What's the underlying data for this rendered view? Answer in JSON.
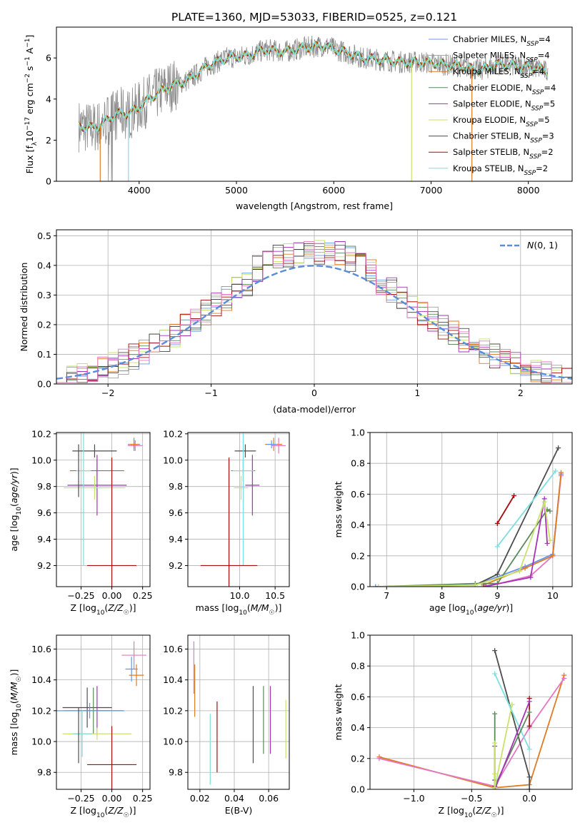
{
  "title": "PLATE=1360, MJD=53033, FIBERID=0525, z=0.121",
  "colors": {
    "chabrier_miles": "#6495ed",
    "salpeter_miles": "#9e9e9e",
    "kroupa_miles": "#e07b24",
    "chabrier_elodie": "#5c8a5c",
    "salpeter_elodie": "#a632b8",
    "kroupa_elodie": "#c8e36b",
    "chabrier_stelib": "#4d4d4d",
    "salpeter_stelib": "#a30d0d",
    "kroupa_stelib": "#7fdede",
    "pink": "#e377c2",
    "gaussian": "#5b8bd9"
  },
  "chart_data": [
    {
      "id": "spectrum",
      "type": "line",
      "xlabel": "wavelength [Angstrom, rest frame]",
      "ylabel_parts": [
        "Flux [f",
        "λ",
        "10",
        "−17",
        " erg cm",
        "−2",
        " s",
        "−1",
        " A",
        "−1",
        "]"
      ],
      "xlim": [
        3150,
        8450
      ],
      "ylim": [
        0,
        7.5
      ],
      "xticks": [
        4000,
        5000,
        6000,
        7000,
        8000
      ],
      "yticks": [
        0,
        2,
        4,
        6
      ],
      "legend": [
        {
          "pre": "Chabrier MILES, N",
          "sub": "SSP",
          "post": "=4",
          "color_key": "chabrier_miles"
        },
        {
          "pre": "Salpeter MILES, N",
          "sub": "SSP",
          "post": "=4",
          "color_key": "salpeter_miles"
        },
        {
          "pre": "Kroupa MILES, N",
          "sub": "SSP",
          "post": "=4",
          "color_key": "kroupa_miles"
        },
        {
          "pre": "Chabrier ELODIE, N",
          "sub": "SSP",
          "post": "=4",
          "color_key": "chabrier_elodie"
        },
        {
          "pre": "Salpeter ELODIE, N",
          "sub": "SSP",
          "post": "=5",
          "color_key": "salpeter_elodie"
        },
        {
          "pre": "Kroupa ELODIE, N",
          "sub": "SSP",
          "post": "=5",
          "color_key": "kroupa_elodie"
        },
        {
          "pre": "Chabrier STELIB, N",
          "sub": "SSP",
          "post": "=3",
          "color_key": "chabrier_stelib"
        },
        {
          "pre": "Salpeter STELIB, N",
          "sub": "SSP",
          "post": "=2",
          "color_key": "salpeter_stelib"
        },
        {
          "pre": "Kroupa STELIB, N",
          "sub": "SSP",
          "post": "=2",
          "color_key": "kroupa_stelib"
        }
      ],
      "continuum": [
        [
          3380,
          2.7
        ],
        [
          3500,
          2.6
        ],
        [
          3600,
          2.7
        ],
        [
          3700,
          3.1
        ],
        [
          3800,
          3.3
        ],
        [
          3900,
          3.3
        ],
        [
          4000,
          3.6
        ],
        [
          4100,
          4.0
        ],
        [
          4300,
          4.6
        ],
        [
          4500,
          4.9
        ],
        [
          4700,
          5.6
        ],
        [
          4900,
          6.0
        ],
        [
          5100,
          6.1
        ],
        [
          5300,
          6.4
        ],
        [
          5500,
          6.3
        ],
        [
          5700,
          6.5
        ],
        [
          5900,
          6.6
        ],
        [
          6100,
          6.3
        ],
        [
          6300,
          6.0
        ],
        [
          6500,
          5.9
        ],
        [
          6700,
          5.8
        ],
        [
          6900,
          5.8
        ],
        [
          7100,
          5.7
        ],
        [
          7300,
          5.6
        ],
        [
          7500,
          5.4
        ],
        [
          7700,
          5.7
        ],
        [
          7900,
          5.6
        ],
        [
          8100,
          5.5
        ],
        [
          8200,
          5.3
        ]
      ]
    },
    {
      "id": "histogram",
      "type": "bar",
      "xlabel": "(data-model)/error",
      "ylabel": "Normed distribution",
      "xlim": [
        -2.5,
        2.5
      ],
      "ylim": [
        0,
        0.52
      ],
      "xticks": [
        -2,
        -1,
        0,
        1,
        2
      ],
      "yticks": [
        0.0,
        0.1,
        0.2,
        0.3,
        0.4,
        0.5
      ],
      "bin_start": -2.5,
      "bin_width": 0.1,
      "legend_label": "N(0,1)",
      "grid": true
    },
    {
      "id": "age_vs_Z",
      "type": "scatter",
      "xlabel": "Z [log10(Z/Z☉)]",
      "ylabel": "age  [log10(age/yr)]",
      "xlim": [
        -0.45,
        0.31
      ],
      "ylim": [
        9.04,
        10.21
      ],
      "xticks": [
        -0.25,
        0.0,
        0.25
      ],
      "yticks": [
        9.2,
        9.4,
        9.6,
        9.8,
        10.0,
        10.2
      ],
      "points": [
        {
          "x": 0.18,
          "y": 10.12,
          "xerr": 0.05,
          "yerr": 0.05,
          "color_key": "chabrier_miles"
        },
        {
          "x": 0.19,
          "y": 10.11,
          "xerr": 0.06,
          "yerr": 0.04,
          "color_key": "pink"
        },
        {
          "x": 0.18,
          "y": 10.12,
          "xerr": 0.04,
          "yerr": 0.03,
          "color_key": "kroupa_miles"
        },
        {
          "x": -0.14,
          "y": 10.07,
          "xerr": 0.18,
          "yerr": 0.05,
          "color_key": "chabrier_stelib"
        },
        {
          "x": -0.12,
          "y": 9.92,
          "xerr": 0.22,
          "yerr": 0.08,
          "color_key": "chabrier_elodie"
        },
        {
          "x": -0.12,
          "y": 9.81,
          "xerr": 0.24,
          "yerr": 0.23,
          "color_key": "salpeter_elodie"
        },
        {
          "x": -0.14,
          "y": 9.79,
          "xerr": 0.25,
          "yerr": 0.09,
          "color_key": "kroupa_elodie"
        },
        {
          "x": -0.23,
          "y": 9.92,
          "xerr": 0.06,
          "yerr": 0.72,
          "color_key": "kroupa_stelib"
        },
        {
          "x": -0.27,
          "y": 9.92,
          "xerr": 0.0,
          "yerr": 0.2,
          "color_key": "chabrier_stelib"
        },
        {
          "x": 0.0,
          "y": 9.2,
          "xerr": 0.2,
          "yerr": 0.82,
          "color_key": "salpeter_stelib"
        }
      ]
    },
    {
      "id": "age_vs_mass",
      "type": "scatter",
      "xlabel": "mass [log10(M/M☉)]",
      "ylabel": "",
      "xlim": [
        9.27,
        10.7
      ],
      "ylim": [
        9.04,
        10.21
      ],
      "xticks": [
        10.0,
        10.5
      ],
      "yticks": [
        9.2,
        9.4,
        9.6,
        9.8,
        10.0,
        10.2
      ],
      "points": [
        {
          "x": 10.48,
          "y": 10.12,
          "xerr": 0.12,
          "yerr": 0.05,
          "color_key": "kroupa_miles"
        },
        {
          "x": 10.55,
          "y": 10.11,
          "xerr": 0.1,
          "yerr": 0.06,
          "color_key": "pink"
        },
        {
          "x": 10.45,
          "y": 10.12,
          "xerr": 0.07,
          "yerr": 0.03,
          "color_key": "chabrier_miles"
        },
        {
          "x": 10.08,
          "y": 10.07,
          "xerr": 0.15,
          "yerr": 0.05,
          "color_key": "chabrier_stelib"
        },
        {
          "x": 10.05,
          "y": 9.92,
          "xerr": 0.17,
          "yerr": 0.08,
          "color_key": "chabrier_elodie"
        },
        {
          "x": 10.18,
          "y": 9.81,
          "xerr": 0.1,
          "yerr": 0.23,
          "color_key": "salpeter_elodie"
        },
        {
          "x": 10.02,
          "y": 9.79,
          "xerr": 0.1,
          "yerr": 0.09,
          "color_key": "kroupa_elodie"
        },
        {
          "x": 10.05,
          "y": 9.92,
          "xerr": 0.15,
          "yerr": 0.72,
          "color_key": "kroupa_stelib"
        },
        {
          "x": 9.85,
          "y": 9.2,
          "xerr": 0.4,
          "yerr": 0.82,
          "color_key": "salpeter_stelib"
        }
      ]
    },
    {
      "id": "weight_vs_age",
      "type": "line",
      "xlabel": "age  [log10(age/yr)]",
      "ylabel": "mass weight",
      "xlim": [
        6.7,
        10.35
      ],
      "ylim": [
        0,
        1.0
      ],
      "xticks": [
        7,
        8,
        9,
        10
      ],
      "yticks": [
        0.0,
        0.2,
        0.4,
        0.6,
        0.8,
        1.0
      ],
      "series": [
        {
          "color_key": "chabrier_miles",
          "x": [
            6.8,
            8.6,
            9.5,
            10.0,
            10.15
          ],
          "y": [
            0.0,
            0.01,
            0.13,
            0.21,
            0.73
          ]
        },
        {
          "color_key": "pink",
          "x": [
            8.8,
            9.6,
            10.0,
            10.15
          ],
          "y": [
            0.0,
            0.07,
            0.2,
            0.72
          ]
        },
        {
          "color_key": "kroupa_miles",
          "x": [
            8.75,
            9.5,
            10.0,
            10.15
          ],
          "y": [
            0.01,
            0.12,
            0.2,
            0.74
          ]
        },
        {
          "color_key": "chabrier_stelib",
          "x": [
            8.6,
            9.0,
            10.1
          ],
          "y": [
            0.01,
            0.08,
            0.9
          ]
        },
        {
          "color_key": "chabrier_elodie",
          "x": [
            6.85,
            8.6,
            9.0,
            9.9,
            9.95
          ],
          "y": [
            0.0,
            0.02,
            0.02,
            0.5,
            0.49
          ]
        },
        {
          "color_key": "salpeter_elodie",
          "x": [
            8.75,
            9.6,
            9.85,
            9.9
          ],
          "y": [
            0.0,
            0.06,
            0.57,
            0.28
          ]
        },
        {
          "color_key": "kroupa_elodie",
          "x": [
            6.85,
            8.6,
            9.4,
            9.85,
            9.95
          ],
          "y": [
            0.0,
            0.01,
            0.1,
            0.55,
            0.3
          ]
        },
        {
          "color_key": "kroupa_stelib",
          "x": [
            9.0,
            10.05
          ],
          "y": [
            0.26,
            0.75
          ]
        },
        {
          "color_key": "salpeter_stelib",
          "x": [
            9.0,
            9.3
          ],
          "y": [
            0.41,
            0.59
          ]
        }
      ]
    },
    {
      "id": "mass_vs_Z",
      "type": "scatter",
      "xlabel": "Z [log10(Z/Z☉)]",
      "ylabel": "mass [log10(M/M☉)]",
      "xlim": [
        -0.45,
        0.31
      ],
      "ylim": [
        9.69,
        10.69
      ],
      "xticks": [
        -0.25,
        0.0,
        0.25
      ],
      "yticks": [
        9.8,
        10.0,
        10.2,
        10.4,
        10.6
      ],
      "points": [
        {
          "x": 0.18,
          "y": 10.56,
          "xerr": 0.1,
          "yerr": 0.09,
          "color_key": "pink"
        },
        {
          "x": 0.16,
          "y": 10.47,
          "xerr": 0.05,
          "yerr": 0.08,
          "color_key": "chabrier_miles"
        },
        {
          "x": 0.2,
          "y": 10.43,
          "xerr": 0.06,
          "yerr": 0.07,
          "color_key": "kroupa_miles"
        },
        {
          "x": -0.2,
          "y": 10.22,
          "xerr": 0.2,
          "yerr": 0.13,
          "color_key": "chabrier_stelib"
        },
        {
          "x": -0.15,
          "y": 10.2,
          "xerr": 0.24,
          "yerr": 0.15,
          "color_key": "chabrier_elodie"
        },
        {
          "x": -0.12,
          "y": 10.2,
          "xerr": 0.1,
          "yerr": 0.16,
          "color_key": "salpeter_elodie"
        },
        {
          "x": -0.18,
          "y": 10.2,
          "xerr": 0.28,
          "yerr": 0.05,
          "color_key": "chabrier_miles"
        },
        {
          "x": -0.12,
          "y": 10.05,
          "xerr": 0.28,
          "yerr": 0.04,
          "color_key": "kroupa_elodie"
        },
        {
          "x": -0.24,
          "y": 10.05,
          "xerr": 0.08,
          "yerr": 0.15,
          "color_key": "kroupa_stelib"
        },
        {
          "x": -0.27,
          "y": 10.04,
          "xerr": 0.0,
          "yerr": 0.18,
          "color_key": "chabrier_stelib"
        },
        {
          "x": 0.0,
          "y": 9.85,
          "xerr": 0.2,
          "yerr": 0.25,
          "color_key": "salpeter_stelib"
        }
      ]
    },
    {
      "id": "mass_vs_ebv",
      "type": "scatter",
      "xlabel": "E(B-V)",
      "ylabel": "",
      "xlim": [
        0.013,
        0.072
      ],
      "ylim": [
        9.69,
        10.69
      ],
      "xticks": [
        0.02,
        0.04,
        0.06
      ],
      "yticks": [
        9.8,
        10.0,
        10.2,
        10.4,
        10.6
      ],
      "points": [
        {
          "x": 0.0165,
          "y": 10.48,
          "xerr": 0,
          "yerr": 0.17,
          "color_key": "pink"
        },
        {
          "x": 0.017,
          "y": 10.33,
          "xerr": 0,
          "yerr": 0.17,
          "color_key": "kroupa_miles"
        },
        {
          "x": 0.026,
          "y": 9.95,
          "xerr": 0,
          "yerr": 0.23,
          "color_key": "kroupa_stelib"
        },
        {
          "x": 0.03,
          "y": 10.03,
          "xerr": 0,
          "yerr": 0.23,
          "color_key": "salpeter_stelib"
        },
        {
          "x": 0.051,
          "y": 10.11,
          "xerr": 0,
          "yerr": 0.25,
          "color_key": "chabrier_stelib"
        },
        {
          "x": 0.057,
          "y": 10.14,
          "xerr": 0,
          "yerr": 0.22,
          "color_key": "chabrier_elodie"
        },
        {
          "x": 0.061,
          "y": 10.14,
          "xerr": 0,
          "yerr": 0.22,
          "color_key": "salpeter_elodie"
        },
        {
          "x": 0.07,
          "y": 10.08,
          "xerr": 0,
          "yerr": 0.19,
          "color_key": "kroupa_elodie"
        }
      ]
    },
    {
      "id": "weight_vs_Z",
      "type": "line",
      "xlabel": "Z [log10(Z/Z☉)]",
      "ylabel": "mass weight",
      "xlim": [
        -1.38,
        0.37
      ],
      "ylim": [
        0,
        1.0
      ],
      "xticks": [
        -1.0,
        -0.5,
        0.0
      ],
      "yticks": [
        0.0,
        0.2,
        0.4,
        0.6,
        0.8,
        1.0
      ],
      "series": [
        {
          "color_key": "kroupa_miles",
          "x": [
            -1.3,
            -0.3,
            0.0,
            0.3
          ],
          "y": [
            0.21,
            0.01,
            0.03,
            0.74
          ]
        },
        {
          "color_key": "pink",
          "x": [
            -1.3,
            -0.3,
            0.0,
            0.3
          ],
          "y": [
            0.2,
            0.02,
            0.4,
            0.72
          ]
        },
        {
          "color_key": "chabrier_stelib",
          "x": [
            -0.3,
            0.0,
            0.0
          ],
          "y": [
            0.9,
            0.08,
            0.0
          ]
        },
        {
          "color_key": "kroupa_stelib",
          "x": [
            -0.3,
            0.0
          ],
          "y": [
            0.75,
            0.26
          ]
        },
        {
          "color_key": "salpeter_stelib",
          "x": [
            0.0,
            0.0
          ],
          "y": [
            0.41,
            0.59
          ]
        },
        {
          "color_key": "chabrier_elodie",
          "x": [
            -0.3,
            -0.3,
            -0.3,
            0.0
          ],
          "y": [
            0.49,
            0.02,
            0.02,
            0.5
          ]
        },
        {
          "color_key": "salpeter_elodie",
          "x": [
            -0.3,
            -0.3,
            -0.3,
            0.0
          ],
          "y": [
            0.28,
            0.06,
            0.0,
            0.57
          ]
        },
        {
          "color_key": "kroupa_elodie",
          "x": [
            -0.3,
            -0.3,
            -0.3,
            -0.15
          ],
          "y": [
            0.3,
            0.1,
            0.01,
            0.55
          ]
        }
      ]
    }
  ]
}
